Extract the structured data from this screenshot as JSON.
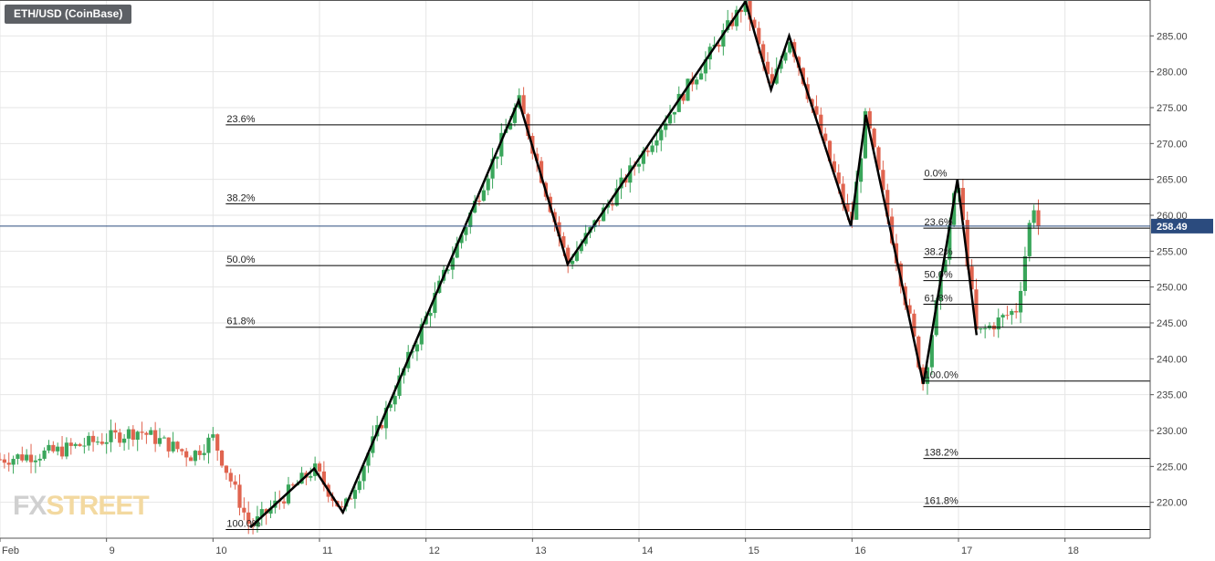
{
  "title": "ETH/USD (CoinBase)",
  "watermark": {
    "fx": "FX",
    "street": "STREET"
  },
  "colors": {
    "up": "#3aa65b",
    "down": "#e0644f",
    "price_line": "#2b4b7e",
    "price_tag": "#2b4b7e",
    "grid": "#e6e6e6",
    "zigzag": "#000000"
  },
  "chart_data": {
    "type": "candlestick",
    "title": "ETH/USD (CoinBase)",
    "ylim": [
      215,
      290
    ],
    "xlim": [
      8.0,
      18.8
    ],
    "y_ticks": [
      220,
      225,
      230,
      235,
      240,
      245,
      250,
      255,
      260,
      265,
      270,
      275,
      280,
      285
    ],
    "y_tick_labels": [
      "220.00",
      "225.00",
      "230.00",
      "235.00",
      "240.00",
      "245.00",
      "250.00",
      "255.00",
      "260.00",
      "265.00",
      "270.00",
      "275.00",
      "280.00",
      "285.00"
    ],
    "x_ticks": [
      8.0,
      9,
      10,
      11,
      12,
      13,
      14,
      15,
      16,
      17,
      18
    ],
    "x_tick_labels": [
      "Feb",
      "9",
      "10",
      "11",
      "12",
      "13",
      "14",
      "15",
      "16",
      "17",
      "18"
    ],
    "current_price": 258.49,
    "current_price_label": "258.49",
    "grid": true,
    "zigzag": [
      [
        10.35,
        216.5
      ],
      [
        10.95,
        224.7
      ],
      [
        11.22,
        218.6
      ],
      [
        12.87,
        276.0
      ],
      [
        13.33,
        253.2
      ],
      [
        15.0,
        289.8
      ],
      [
        15.24,
        277.5
      ],
      [
        15.41,
        285.0
      ],
      [
        15.99,
        258.5
      ],
      [
        16.13,
        274.0
      ],
      [
        16.67,
        236.5
      ],
      [
        16.99,
        265.0
      ],
      [
        17.17,
        243.3
      ]
    ],
    "fib_sets": [
      {
        "x_start": 10.12,
        "levels": [
          {
            "label": "23.6%",
            "price": 272.6
          },
          {
            "label": "38.2%",
            "price": 261.6
          },
          {
            "label": "50.0%",
            "price": 253.0
          },
          {
            "label": "61.8%",
            "price": 244.4
          },
          {
            "label": "100.0%",
            "price": 216.2
          }
        ]
      },
      {
        "x_start": 16.67,
        "levels": [
          {
            "label": "0.0%",
            "price": 265.0
          },
          {
            "label": "23.6%",
            "price": 258.2
          },
          {
            "label": "38.2%",
            "price": 254.1
          },
          {
            "label": "50.0%",
            "price": 250.9
          },
          {
            "label": "61.8%",
            "price": 247.6
          },
          {
            "label": "100.0%",
            "price": 236.9
          },
          {
            "label": "138.2%",
            "price": 226.1
          },
          {
            "label": "161.8%",
            "price": 219.4
          }
        ]
      }
    ]
  }
}
